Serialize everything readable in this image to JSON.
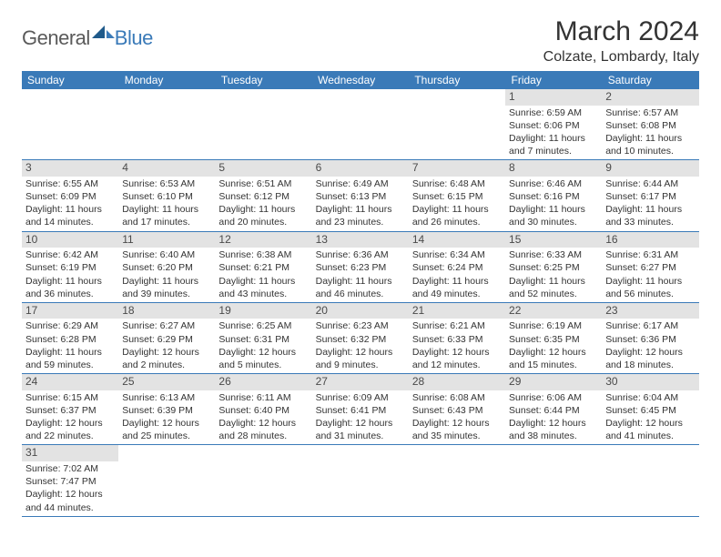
{
  "logo": {
    "general": "General",
    "blue": "Blue"
  },
  "title": "March 2024",
  "location": "Colzate, Lombardy, Italy",
  "colors": {
    "header_bg": "#3a7ab8",
    "header_text": "#ffffff",
    "daynum_bg": "#e3e3e3",
    "border": "#3a7ab8",
    "body_text": "#333333"
  },
  "day_headers": [
    "Sunday",
    "Monday",
    "Tuesday",
    "Wednesday",
    "Thursday",
    "Friday",
    "Saturday"
  ],
  "weeks": [
    [
      null,
      null,
      null,
      null,
      null,
      {
        "n": "1",
        "sr": "Sunrise: 6:59 AM",
        "ss": "Sunset: 6:06 PM",
        "d1": "Daylight: 11 hours",
        "d2": "and 7 minutes."
      },
      {
        "n": "2",
        "sr": "Sunrise: 6:57 AM",
        "ss": "Sunset: 6:08 PM",
        "d1": "Daylight: 11 hours",
        "d2": "and 10 minutes."
      }
    ],
    [
      {
        "n": "3",
        "sr": "Sunrise: 6:55 AM",
        "ss": "Sunset: 6:09 PM",
        "d1": "Daylight: 11 hours",
        "d2": "and 14 minutes."
      },
      {
        "n": "4",
        "sr": "Sunrise: 6:53 AM",
        "ss": "Sunset: 6:10 PM",
        "d1": "Daylight: 11 hours",
        "d2": "and 17 minutes."
      },
      {
        "n": "5",
        "sr": "Sunrise: 6:51 AM",
        "ss": "Sunset: 6:12 PM",
        "d1": "Daylight: 11 hours",
        "d2": "and 20 minutes."
      },
      {
        "n": "6",
        "sr": "Sunrise: 6:49 AM",
        "ss": "Sunset: 6:13 PM",
        "d1": "Daylight: 11 hours",
        "d2": "and 23 minutes."
      },
      {
        "n": "7",
        "sr": "Sunrise: 6:48 AM",
        "ss": "Sunset: 6:15 PM",
        "d1": "Daylight: 11 hours",
        "d2": "and 26 minutes."
      },
      {
        "n": "8",
        "sr": "Sunrise: 6:46 AM",
        "ss": "Sunset: 6:16 PM",
        "d1": "Daylight: 11 hours",
        "d2": "and 30 minutes."
      },
      {
        "n": "9",
        "sr": "Sunrise: 6:44 AM",
        "ss": "Sunset: 6:17 PM",
        "d1": "Daylight: 11 hours",
        "d2": "and 33 minutes."
      }
    ],
    [
      {
        "n": "10",
        "sr": "Sunrise: 6:42 AM",
        "ss": "Sunset: 6:19 PM",
        "d1": "Daylight: 11 hours",
        "d2": "and 36 minutes."
      },
      {
        "n": "11",
        "sr": "Sunrise: 6:40 AM",
        "ss": "Sunset: 6:20 PM",
        "d1": "Daylight: 11 hours",
        "d2": "and 39 minutes."
      },
      {
        "n": "12",
        "sr": "Sunrise: 6:38 AM",
        "ss": "Sunset: 6:21 PM",
        "d1": "Daylight: 11 hours",
        "d2": "and 43 minutes."
      },
      {
        "n": "13",
        "sr": "Sunrise: 6:36 AM",
        "ss": "Sunset: 6:23 PM",
        "d1": "Daylight: 11 hours",
        "d2": "and 46 minutes."
      },
      {
        "n": "14",
        "sr": "Sunrise: 6:34 AM",
        "ss": "Sunset: 6:24 PM",
        "d1": "Daylight: 11 hours",
        "d2": "and 49 minutes."
      },
      {
        "n": "15",
        "sr": "Sunrise: 6:33 AM",
        "ss": "Sunset: 6:25 PM",
        "d1": "Daylight: 11 hours",
        "d2": "and 52 minutes."
      },
      {
        "n": "16",
        "sr": "Sunrise: 6:31 AM",
        "ss": "Sunset: 6:27 PM",
        "d1": "Daylight: 11 hours",
        "d2": "and 56 minutes."
      }
    ],
    [
      {
        "n": "17",
        "sr": "Sunrise: 6:29 AM",
        "ss": "Sunset: 6:28 PM",
        "d1": "Daylight: 11 hours",
        "d2": "and 59 minutes."
      },
      {
        "n": "18",
        "sr": "Sunrise: 6:27 AM",
        "ss": "Sunset: 6:29 PM",
        "d1": "Daylight: 12 hours",
        "d2": "and 2 minutes."
      },
      {
        "n": "19",
        "sr": "Sunrise: 6:25 AM",
        "ss": "Sunset: 6:31 PM",
        "d1": "Daylight: 12 hours",
        "d2": "and 5 minutes."
      },
      {
        "n": "20",
        "sr": "Sunrise: 6:23 AM",
        "ss": "Sunset: 6:32 PM",
        "d1": "Daylight: 12 hours",
        "d2": "and 9 minutes."
      },
      {
        "n": "21",
        "sr": "Sunrise: 6:21 AM",
        "ss": "Sunset: 6:33 PM",
        "d1": "Daylight: 12 hours",
        "d2": "and 12 minutes."
      },
      {
        "n": "22",
        "sr": "Sunrise: 6:19 AM",
        "ss": "Sunset: 6:35 PM",
        "d1": "Daylight: 12 hours",
        "d2": "and 15 minutes."
      },
      {
        "n": "23",
        "sr": "Sunrise: 6:17 AM",
        "ss": "Sunset: 6:36 PM",
        "d1": "Daylight: 12 hours",
        "d2": "and 18 minutes."
      }
    ],
    [
      {
        "n": "24",
        "sr": "Sunrise: 6:15 AM",
        "ss": "Sunset: 6:37 PM",
        "d1": "Daylight: 12 hours",
        "d2": "and 22 minutes."
      },
      {
        "n": "25",
        "sr": "Sunrise: 6:13 AM",
        "ss": "Sunset: 6:39 PM",
        "d1": "Daylight: 12 hours",
        "d2": "and 25 minutes."
      },
      {
        "n": "26",
        "sr": "Sunrise: 6:11 AM",
        "ss": "Sunset: 6:40 PM",
        "d1": "Daylight: 12 hours",
        "d2": "and 28 minutes."
      },
      {
        "n": "27",
        "sr": "Sunrise: 6:09 AM",
        "ss": "Sunset: 6:41 PM",
        "d1": "Daylight: 12 hours",
        "d2": "and 31 minutes."
      },
      {
        "n": "28",
        "sr": "Sunrise: 6:08 AM",
        "ss": "Sunset: 6:43 PM",
        "d1": "Daylight: 12 hours",
        "d2": "and 35 minutes."
      },
      {
        "n": "29",
        "sr": "Sunrise: 6:06 AM",
        "ss": "Sunset: 6:44 PM",
        "d1": "Daylight: 12 hours",
        "d2": "and 38 minutes."
      },
      {
        "n": "30",
        "sr": "Sunrise: 6:04 AM",
        "ss": "Sunset: 6:45 PM",
        "d1": "Daylight: 12 hours",
        "d2": "and 41 minutes."
      }
    ],
    [
      {
        "n": "31",
        "sr": "Sunrise: 7:02 AM",
        "ss": "Sunset: 7:47 PM",
        "d1": "Daylight: 12 hours",
        "d2": "and 44 minutes."
      },
      null,
      null,
      null,
      null,
      null,
      null
    ]
  ]
}
